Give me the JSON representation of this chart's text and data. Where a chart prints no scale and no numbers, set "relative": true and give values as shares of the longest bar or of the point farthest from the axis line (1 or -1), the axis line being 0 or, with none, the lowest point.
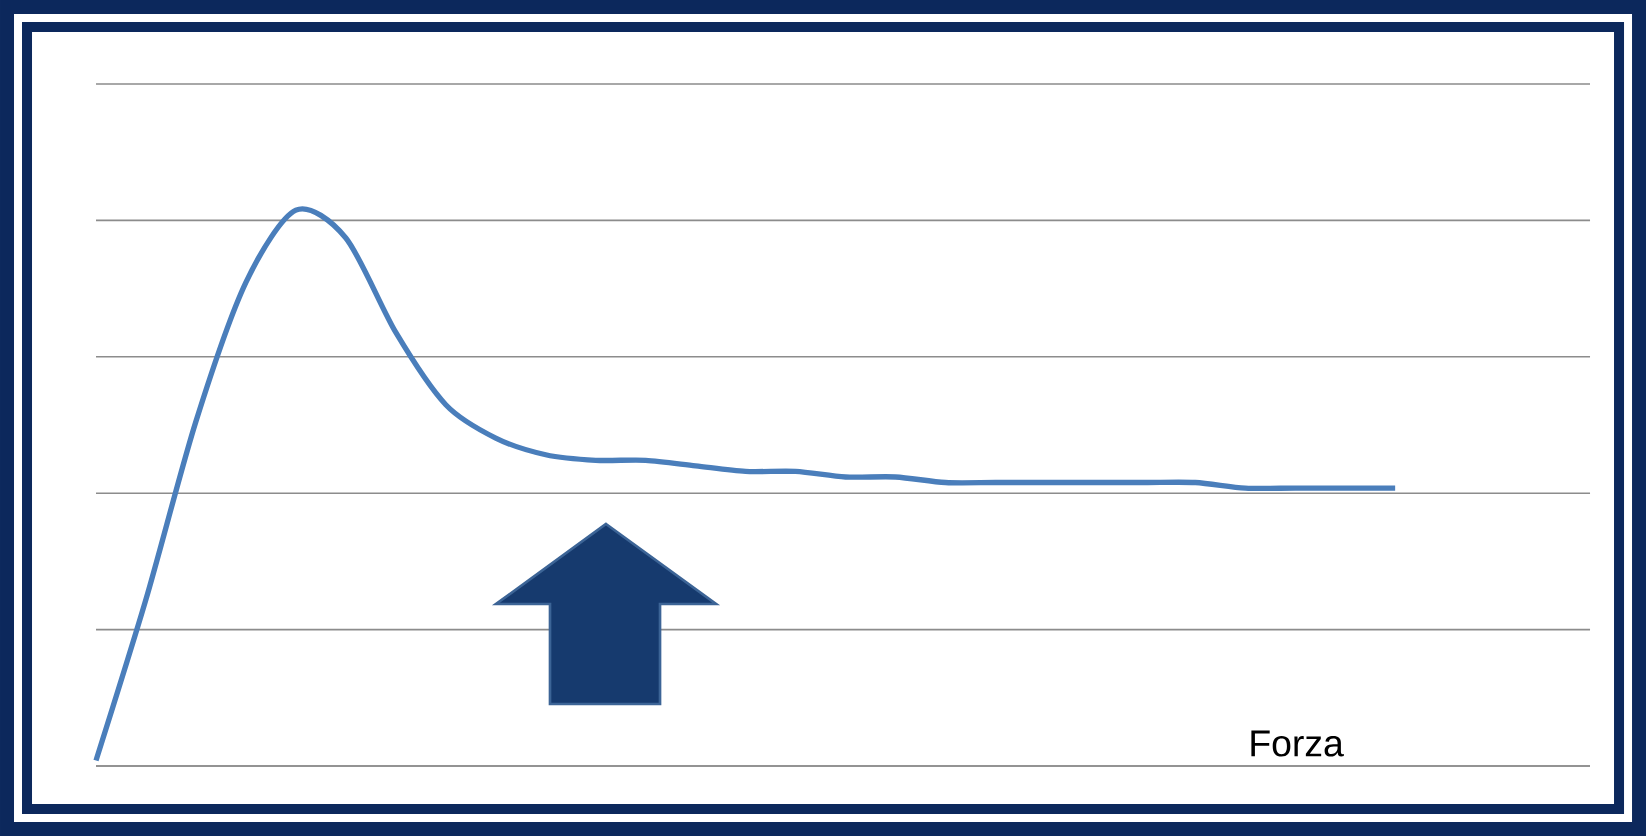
{
  "chart_data": {
    "type": "line",
    "relative": true,
    "grid": "y",
    "annotations": [
      "Forza"
    ],
    "categories": [
      null,
      null,
      null,
      null,
      null,
      null,
      null,
      null,
      null,
      null,
      null,
      null,
      null,
      null,
      null,
      null,
      null,
      null,
      null,
      null,
      null,
      null,
      null,
      null,
      null,
      null,
      null
    ],
    "series": [
      {
        "color": "#4a7ebb",
        "values": [
          0.01,
          0.3,
          0.62,
          0.87,
          1.0,
          0.95,
          0.78,
          0.65,
          0.59,
          0.56,
          0.55,
          0.55,
          0.54,
          0.53,
          0.53,
          0.52,
          0.52,
          0.51,
          0.51,
          0.51,
          0.51,
          0.51,
          0.51,
          0.5,
          0.5,
          0.5,
          0.5
        ]
      }
    ]
  }
}
